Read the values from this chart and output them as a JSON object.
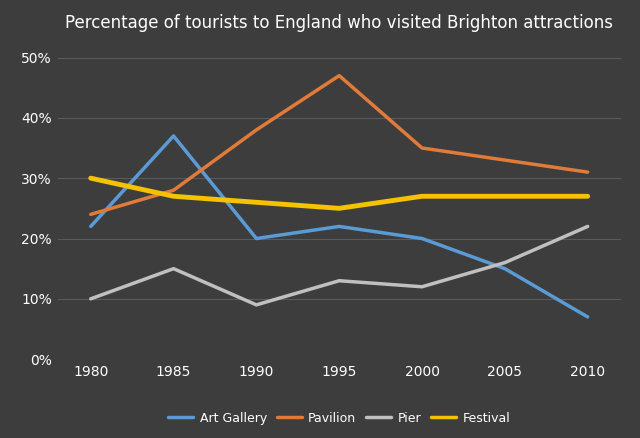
{
  "title": "Percentage of tourists to England who visited Brighton attractions",
  "years": [
    1980,
    1985,
    1990,
    1995,
    2000,
    2005,
    2010
  ],
  "series": {
    "Art Gallery": {
      "values": [
        22,
        37,
        20,
        22,
        20,
        15,
        7
      ],
      "color": "#5B9BD5",
      "linewidth": 2.5
    },
    "Pavilion": {
      "values": [
        24,
        28,
        38,
        47,
        35,
        33,
        31
      ],
      "color": "#E07B39",
      "linewidth": 2.5
    },
    "Pier": {
      "values": [
        10,
        15,
        9,
        13,
        12,
        16,
        22
      ],
      "color": "#C0C0C0",
      "linewidth": 2.5
    },
    "Festival": {
      "values": [
        30,
        27,
        26,
        25,
        27,
        27,
        27
      ],
      "color": "#F5C200",
      "linewidth": 3.5
    }
  },
  "ylim": [
    0,
    53
  ],
  "yticks": [
    0,
    10,
    20,
    30,
    40,
    50
  ],
  "ytick_labels": [
    "0%",
    "10%",
    "20%",
    "30%",
    "40%",
    "50%"
  ],
  "xlim": [
    1978,
    2012
  ],
  "background_color": "#3d3d3d",
  "plot_bg_color": "#3d3d3d",
  "grid_color": "#5a5a5a",
  "text_color": "#ffffff",
  "title_fontsize": 12,
  "tick_fontsize": 10,
  "legend_fontsize": 9,
  "legend_order": [
    "Art Gallery",
    "Pavilion",
    "Pier",
    "Festival"
  ]
}
